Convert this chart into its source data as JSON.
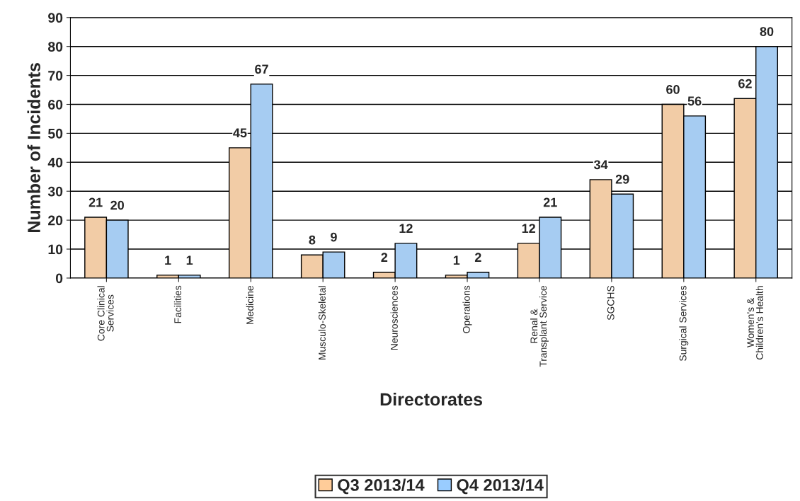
{
  "chart_data": {
    "type": "bar",
    "categories": [
      "Core Clinical\nServices",
      "Facilities",
      "Medicine",
      "Musculo-Skeletal",
      "Neurosciences",
      "Operations",
      "Renal &\nTransplant Service",
      "SGCHS",
      "Surgical Services",
      "Women's &\nChildren's Health"
    ],
    "series": [
      {
        "name": "Q3 2013/14",
        "color": "#ffcc99",
        "values": [
          21,
          1,
          45,
          8,
          2,
          1,
          12,
          34,
          60,
          62
        ]
      },
      {
        "name": "Q4 2013/14",
        "color": "#99ccff",
        "values": [
          20,
          1,
          67,
          9,
          12,
          2,
          21,
          29,
          56,
          80
        ]
      }
    ],
    "xlabel": "Directorates",
    "ylabel": "Number of Incidents",
    "ylim": [
      0,
      90
    ],
    "yticks": [
      0,
      10,
      20,
      30,
      40,
      50,
      60,
      70,
      80,
      90
    ],
    "grid": "y",
    "legend": "bottom",
    "data_labels": true
  }
}
